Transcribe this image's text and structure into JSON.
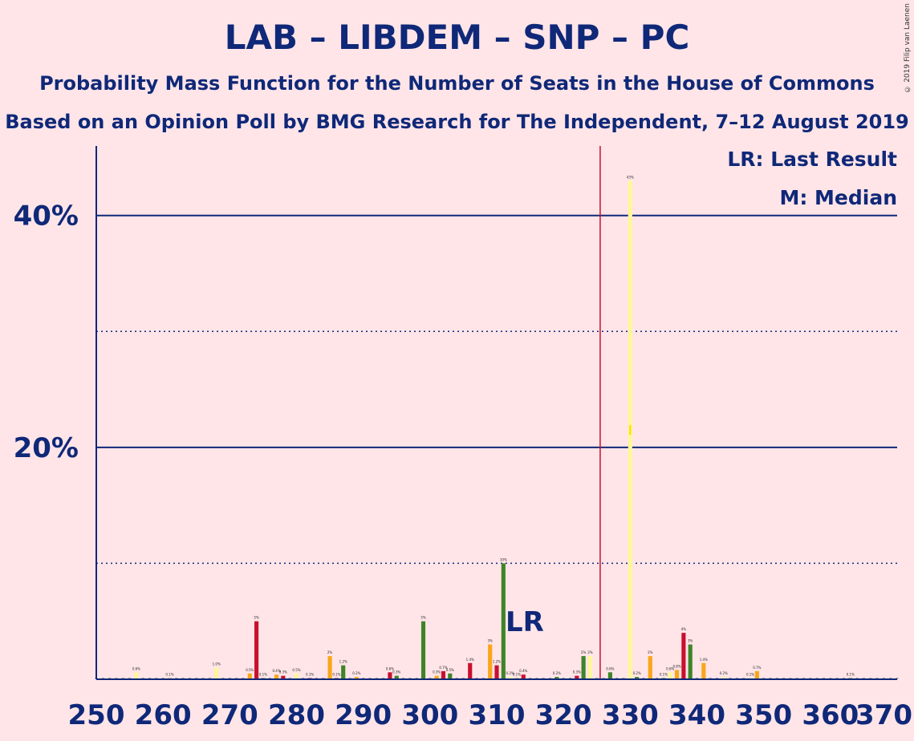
{
  "header": {
    "title": "LAB – LIBDEM – SNP – PC",
    "subtitle1": "Probability Mass Function for the Number of Seats in the House of Commons",
    "subtitle2": "Based on an Opinion Poll by BMG Research for The Independent, 7–12 August 2019",
    "copyright": "© 2019 Filip van Laenen"
  },
  "legend": {
    "last_result": "LR: Last Result",
    "median": "M: Median"
  },
  "chart_data": {
    "type": "bar",
    "x_range": [
      250,
      370
    ],
    "y_range_percent": [
      0,
      46
    ],
    "x_ticks": [
      250,
      260,
      270,
      280,
      290,
      300,
      310,
      320,
      330,
      340,
      350,
      360,
      370
    ],
    "y_tick_labels": [
      {
        "value": 20,
        "label": "20%"
      },
      {
        "value": 40,
        "label": "40%"
      }
    ],
    "solid_gridlines": [
      20,
      40
    ],
    "dotted_gridlines": [
      10,
      30
    ],
    "majority_line_x": 325.5,
    "last_result": {
      "x": 313,
      "label": "LR"
    },
    "median": {
      "x": 330,
      "label": "M"
    },
    "colors": {
      "background": "#FFE5E8",
      "axis": "#0F2878",
      "majority_line": "#C8102E",
      "median_bar": "#FFF799",
      "median_bar_dark": "#FFE300",
      "bar_colors": [
        "#FFF799",
        "#FAA61A",
        "#C8102E",
        "#3F8428"
      ]
    },
    "bars": [
      {
        "x": 256,
        "value": 0.6,
        "label": "0.6%"
      },
      {
        "x": 261,
        "value": 0.1,
        "label": "0.1%"
      },
      {
        "x": 268,
        "value": 1.0,
        "label": "1.0%"
      },
      {
        "x": 273,
        "value": 0.5,
        "label": "0.5%"
      },
      {
        "x": 274,
        "value": 5.0,
        "label": "5%"
      },
      {
        "x": 275,
        "value": 0.1,
        "label": "0.1%"
      },
      {
        "x": 277,
        "value": 0.4,
        "label": "0.4%"
      },
      {
        "x": 278,
        "value": 0.3,
        "label": "0.3%"
      },
      {
        "x": 280,
        "value": 0.5,
        "label": "0.5%"
      },
      {
        "x": 282,
        "value": 0.1,
        "label": "0.1%"
      },
      {
        "x": 285,
        "value": 2.0,
        "label": "2%"
      },
      {
        "x": 286,
        "value": 0.1,
        "label": "0.1%"
      },
      {
        "x": 287,
        "value": 1.2,
        "label": "1.2%"
      },
      {
        "x": 289,
        "value": 0.2,
        "label": "0.2%"
      },
      {
        "x": 294,
        "value": 0.6,
        "label": "0.6%"
      },
      {
        "x": 295,
        "value": 0.3,
        "label": "0.3%"
      },
      {
        "x": 299,
        "value": 5.0,
        "label": "5%"
      },
      {
        "x": 301,
        "value": 0.3,
        "label": "0.3%"
      },
      {
        "x": 302,
        "value": 0.7,
        "label": "0.7%"
      },
      {
        "x": 303,
        "value": 0.5,
        "label": "0.5%"
      },
      {
        "x": 306,
        "value": 1.4,
        "label": "1.4%"
      },
      {
        "x": 309,
        "value": 3.0,
        "label": "3%"
      },
      {
        "x": 310,
        "value": 1.2,
        "label": "1.2%"
      },
      {
        "x": 311,
        "value": 10.0,
        "label": "10%"
      },
      {
        "x": 312,
        "value": 0.2,
        "label": "0.2%"
      },
      {
        "x": 313,
        "value": 0.1,
        "label": "0.1%"
      },
      {
        "x": 314,
        "value": 0.4,
        "label": "0.4%"
      },
      {
        "x": 319,
        "value": 0.2,
        "label": "0.2%"
      },
      {
        "x": 322,
        "value": 0.3,
        "label": "0.3%"
      },
      {
        "x": 323,
        "value": 2.0,
        "label": "2%"
      },
      {
        "x": 324,
        "value": 2.0,
        "label": "2%"
      },
      {
        "x": 327,
        "value": 0.6,
        "label": "0.6%"
      },
      {
        "x": 330,
        "value": 43.0,
        "label": "43%"
      },
      {
        "x": 331,
        "value": 0.2,
        "label": "0.2%"
      },
      {
        "x": 333,
        "value": 2.0,
        "label": "2%"
      },
      {
        "x": 335,
        "value": 0.1,
        "label": "0.1%"
      },
      {
        "x": 336,
        "value": 0.6,
        "label": "0.6%"
      },
      {
        "x": 337,
        "value": 0.8,
        "label": "0.8%"
      },
      {
        "x": 338,
        "value": 4.0,
        "label": "4%"
      },
      {
        "x": 339,
        "value": 3.0,
        "label": "3%"
      },
      {
        "x": 341,
        "value": 1.4,
        "label": "1.4%"
      },
      {
        "x": 344,
        "value": 0.2,
        "label": "0.2%"
      },
      {
        "x": 348,
        "value": 0.1,
        "label": "0.1%"
      },
      {
        "x": 349,
        "value": 0.7,
        "label": "0.7%"
      },
      {
        "x": 363,
        "value": 0.1,
        "label": "0.1%"
      }
    ]
  }
}
